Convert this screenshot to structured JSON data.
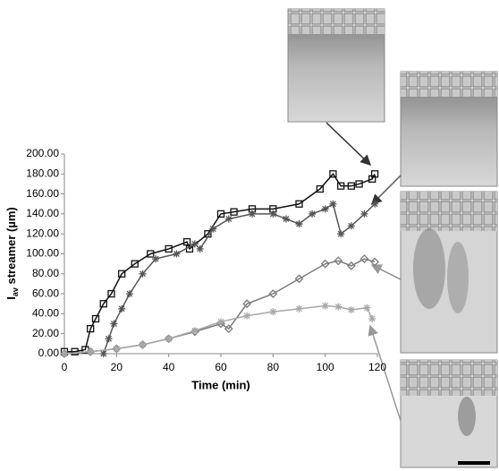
{
  "chart_data": {
    "type": "line",
    "xlabel": "Time (min)",
    "ylabel_parts": [
      "I",
      "av",
      " streamer (µm)"
    ],
    "xlim": [
      0,
      120
    ],
    "xticks": [
      0,
      20,
      40,
      60,
      80,
      100,
      120
    ],
    "ylim": [
      0,
      200
    ],
    "yticks": [
      {
        "value": 0,
        "label": "0.00"
      },
      {
        "value": 20,
        "label": "20.00"
      },
      {
        "value": 40,
        "label": "40.00"
      },
      {
        "value": 60,
        "label": "60.00"
      },
      {
        "value": 80,
        "label": "80.00"
      },
      {
        "value": 100,
        "label": "100.00"
      },
      {
        "value": 120,
        "label": "120.00"
      },
      {
        "value": 140,
        "label": "140.00"
      },
      {
        "value": 160,
        "label": "160.00"
      },
      {
        "value": 180,
        "label": "180.00"
      },
      {
        "value": 200,
        "label": "200.00"
      }
    ],
    "grid": false,
    "series": [
      {
        "color": "#111111",
        "marker": "square",
        "x": [
          0,
          4,
          8,
          10,
          12,
          15,
          18,
          22,
          27,
          33,
          40,
          47,
          48,
          55,
          60,
          65,
          72,
          80,
          90,
          98,
          103,
          106,
          110,
          113,
          118,
          119
        ],
        "values": [
          2,
          2,
          4,
          25,
          35,
          50,
          60,
          80,
          90,
          100,
          105,
          112,
          105,
          120,
          140,
          142,
          145,
          145,
          150,
          165,
          180,
          168,
          168,
          170,
          175,
          180
        ]
      },
      {
        "color": "#555555",
        "marker": "cross",
        "x": [
          15,
          17,
          19,
          22,
          25,
          30,
          35,
          43,
          50,
          52,
          57,
          63,
          72,
          80,
          85,
          90,
          95,
          100,
          103,
          106,
          110,
          115,
          119
        ],
        "values": [
          0,
          15,
          30,
          45,
          60,
          80,
          95,
          100,
          110,
          105,
          125,
          135,
          140,
          140,
          135,
          130,
          140,
          145,
          150,
          120,
          128,
          140,
          150
        ]
      },
      {
        "color": "#7a7a7a",
        "marker": "diamond",
        "x": [
          0,
          10,
          20,
          30,
          40,
          50,
          60,
          63,
          70,
          80,
          90,
          100,
          105,
          110,
          115,
          119
        ],
        "values": [
          0,
          2,
          5,
          9,
          15,
          22,
          30,
          25,
          50,
          60,
          75,
          90,
          93,
          88,
          95,
          92
        ]
      },
      {
        "color": "#a8a8a8",
        "marker": "star",
        "x": [
          0,
          10,
          20,
          30,
          40,
          50,
          60,
          70,
          80,
          90,
          100,
          105,
          110,
          116,
          118
        ],
        "values": [
          0,
          2,
          5,
          9,
          15,
          23,
          32,
          38,
          42,
          45,
          48,
          47,
          44,
          46,
          35
        ]
      }
    ]
  }
}
